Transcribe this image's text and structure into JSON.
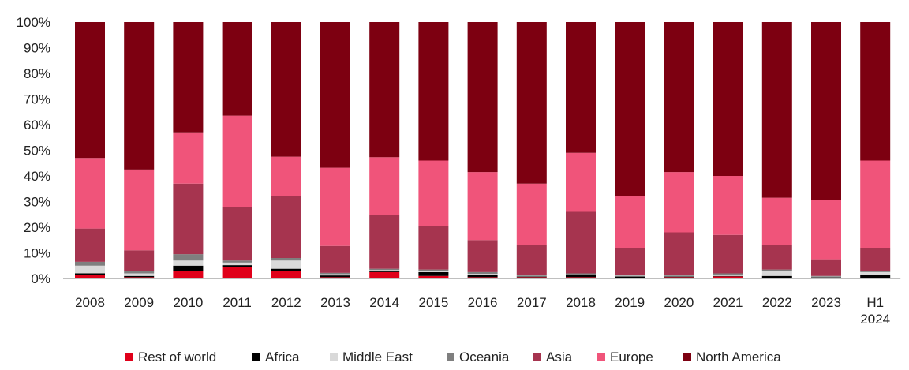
{
  "chart_data": {
    "type": "bar",
    "stacked": true,
    "percent_stacked": true,
    "categories": [
      "2008",
      "2009",
      "2010",
      "2011",
      "2012",
      "2013",
      "2014",
      "2015",
      "2016",
      "2017",
      "2018",
      "2019",
      "2020",
      "2021",
      "2022",
      "2023",
      "H1 2024"
    ],
    "ylim": [
      0,
      100
    ],
    "y_ticks": [
      "0%",
      "10%",
      "20%",
      "30%",
      "40%",
      "50%",
      "60%",
      "70%",
      "80%",
      "90%",
      "100%"
    ],
    "grid": false,
    "legend_position": "bottom",
    "series": [
      {
        "name": "Rest of world",
        "color": "#e0001a",
        "values": [
          1.5,
          0.5,
          3.0,
          4.5,
          3.0,
          0.5,
          2.5,
          1.0,
          0.5,
          0.5,
          0.5,
          0.3,
          0.5,
          0.8,
          0.3,
          0.2,
          0.3
        ]
      },
      {
        "name": "Africa",
        "color": "#000000",
        "values": [
          0.5,
          0.5,
          2.0,
          0.7,
          0.8,
          0.7,
          0.5,
          1.5,
          0.8,
          0.3,
          0.8,
          0.5,
          0.3,
          0.2,
          0.7,
          0.3,
          1.0
        ]
      },
      {
        "name": "Middle East",
        "color": "#d9d9d9",
        "values": [
          3.0,
          1.0,
          2.0,
          1.0,
          3.2,
          0.5,
          0.3,
          0.3,
          0.5,
          0.2,
          0.2,
          0.3,
          0.2,
          0.5,
          2.0,
          0.2,
          1.2
        ]
      },
      {
        "name": "Oceania",
        "color": "#7f7f7f",
        "values": [
          1.5,
          1.0,
          2.5,
          0.8,
          1.0,
          0.5,
          0.5,
          0.7,
          0.7,
          0.5,
          0.5,
          0.4,
          0.5,
          0.5,
          0.5,
          0.3,
          0.5
        ]
      },
      {
        "name": "Asia",
        "color": "#a6344f",
        "values": [
          13.0,
          8.0,
          27.5,
          21.0,
          24.0,
          10.5,
          21.0,
          17.0,
          12.5,
          11.5,
          24.0,
          10.5,
          16.5,
          15.0,
          9.5,
          6.5,
          9.0
        ]
      },
      {
        "name": "Europe",
        "color": "#f0547a",
        "values": [
          27.5,
          31.5,
          20.0,
          35.5,
          15.5,
          30.5,
          22.5,
          25.5,
          26.5,
          24.0,
          23.0,
          20.0,
          23.5,
          23.0,
          18.5,
          23.0,
          34.0
        ]
      },
      {
        "name": "North America",
        "color": "#7d0011",
        "values": [
          53.0,
          57.5,
          43.0,
          36.5,
          52.5,
          56.8,
          52.7,
          54.0,
          58.5,
          63.0,
          51.0,
          68.0,
          58.5,
          60.0,
          68.5,
          69.5,
          54.0
        ]
      }
    ]
  }
}
